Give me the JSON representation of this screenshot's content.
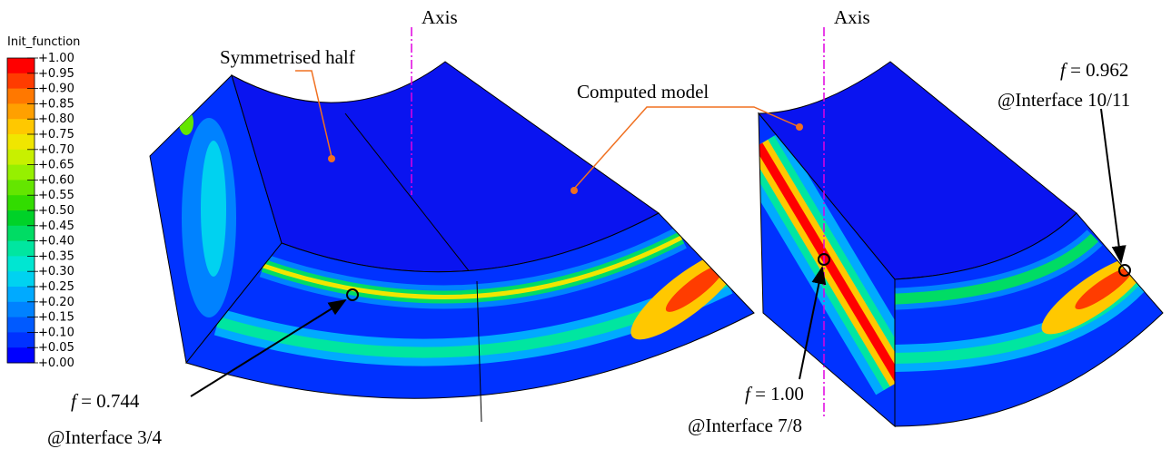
{
  "legend": {
    "title": "Init_function",
    "labels": [
      "+1.00",
      "+0.95",
      "+0.90",
      "+0.85",
      "+0.80",
      "+0.75",
      "+0.70",
      "+0.65",
      "+0.60",
      "+0.55",
      "+0.50",
      "+0.45",
      "+0.40",
      "+0.35",
      "+0.30",
      "+0.25",
      "+0.20",
      "+0.15",
      "+0.10",
      "+0.05",
      "+0.00"
    ],
    "colors": [
      "#ff0000",
      "#ff3c00",
      "#ff7800",
      "#ffa000",
      "#ffc800",
      "#f0e600",
      "#c8f000",
      "#96f000",
      "#64e600",
      "#32dc00",
      "#00d228",
      "#00dc64",
      "#00e6a0",
      "#00e6d2",
      "#00d2f0",
      "#00aaff",
      "#0082ff",
      "#005aff",
      "#0032ff",
      "#0000ff"
    ]
  },
  "annotations": {
    "axis_left": "Axis",
    "axis_right": "Axis",
    "symmetrised": "Symmetrised half",
    "computed": "Computed model",
    "point_1": {
      "symbol": "f",
      "value": "= 0.744",
      "location": "@Interface 3/4"
    },
    "point_2": {
      "symbol": "f",
      "value": "= 1.00",
      "location": "@Interface 7/8"
    },
    "point_3": {
      "symbol": "f",
      "value": "= 0.962",
      "location": "@Interface 10/11"
    }
  }
}
